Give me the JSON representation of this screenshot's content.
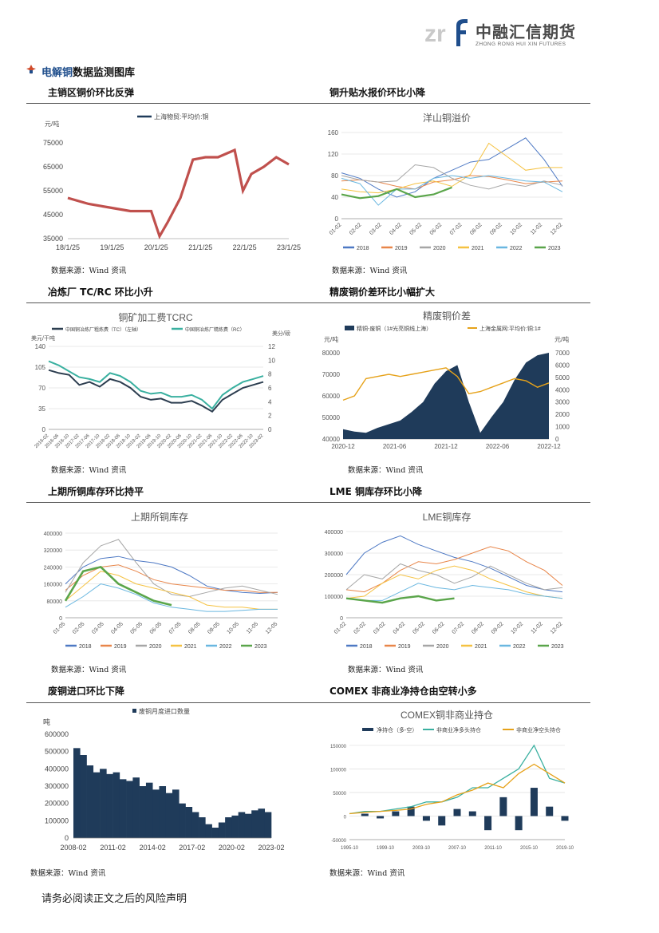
{
  "header": {
    "logo_cn": "中融汇信期货",
    "logo_en": "ZHONG RONG HUI XIN FUTURES",
    "accent_color": "#1f4e8c"
  },
  "section": {
    "title_highlight": "电解铜",
    "title_rest": "数据监测图库"
  },
  "panels": [
    {
      "heading": "主销区铜价环比反弹",
      "source": "数据来源：Wind 资讯"
    },
    {
      "heading": "铜升贴水报价环比小降",
      "source": "数据来源：Wind 资讯"
    },
    {
      "heading": "冶炼厂 TC/RC 环比小升",
      "source": "数据来源：Wind 资讯"
    },
    {
      "heading": "精废铜价差环比小幅扩大",
      "source": "数据来源：Wind 资讯"
    },
    {
      "heading": "上期所铜库存环比持平",
      "source": "数据来源：Wind 资讯"
    },
    {
      "heading": "LME 铜库存环比小降",
      "source": "数据来源：Wind 资讯"
    },
    {
      "heading": "废铜进口环比下降",
      "source": "数据来源：Wind 资讯"
    },
    {
      "heading": "COMEX 非商业净持仓由空转小多",
      "source": "数据来源：Wind 资讯"
    }
  ],
  "footer": "请务必阅读正文之后的风险声明",
  "chart_data": [
    {
      "type": "line",
      "title": "",
      "ylabel": "元/吨",
      "series": [
        {
          "name": "上海物贸:平均价:铜",
          "color": "#c0504d"
        }
      ],
      "x_ticks": [
        "18/1/25",
        "19/1/25",
        "20/1/25",
        "21/1/25",
        "22/1/25",
        "23/1/25"
      ],
      "y_ticks": [
        35000,
        45000,
        55000,
        65000,
        75000
      ],
      "ylim": [
        35000,
        80000
      ],
      "x": [
        2018,
        2018.5,
        2019,
        2019.5,
        2020,
        2020.2,
        2020.4,
        2020.7,
        2021,
        2021.3,
        2021.6,
        2022,
        2022.2,
        2022.4,
        2022.7,
        2023,
        2023.3
      ],
      "values": [
        52000,
        49500,
        48000,
        46500,
        46500,
        36000,
        42000,
        52000,
        68000,
        69000,
        69000,
        72000,
        55000,
        62000,
        65000,
        69000,
        66000
      ]
    },
    {
      "type": "line",
      "title": "洋山铜溢价",
      "x_ticks": [
        "01-02",
        "02-02",
        "03-02",
        "04-02",
        "05-02",
        "06-02",
        "07-02",
        "08-02",
        "09-02",
        "10-02",
        "11-02",
        "12-02"
      ],
      "y_ticks": [
        0,
        40,
        80,
        120,
        160
      ],
      "ylim": [
        0,
        160
      ],
      "series": [
        {
          "name": "2018",
          "color": "#4e79c4",
          "values": [
            85,
            75,
            55,
            40,
            50,
            75,
            90,
            105,
            110,
            130,
            150,
            110,
            60
          ]
        },
        {
          "name": "2019",
          "color": "#e8864a",
          "values": [
            70,
            72,
            68,
            60,
            55,
            68,
            72,
            80,
            78,
            72,
            65,
            68,
            70
          ]
        },
        {
          "name": "2020",
          "color": "#a6a6a6",
          "values": [
            80,
            72,
            68,
            70,
            100,
            95,
            75,
            62,
            55,
            65,
            60,
            70,
            62
          ]
        },
        {
          "name": "2021",
          "color": "#f5c242",
          "values": [
            55,
            50,
            48,
            55,
            65,
            70,
            60,
            82,
            140,
            115,
            90,
            95,
            95
          ]
        },
        {
          "name": "2022",
          "color": "#6ab7e0",
          "values": [
            75,
            65,
            25,
            55,
            55,
            75,
            80,
            75,
            80,
            75,
            70,
            68,
            50
          ]
        },
        {
          "name": "2023",
          "color": "#5aa54a",
          "values": [
            45,
            38,
            42,
            55,
            40,
            45,
            58,
            null,
            null,
            null,
            null,
            null,
            null
          ]
        }
      ]
    },
    {
      "type": "line",
      "title": "铜矿加工费TCRC",
      "ylabel": "美元/干吨",
      "y2label": "美分/磅",
      "x_ticks": [
        "2016-02",
        "2016-06",
        "2016-10",
        "2017-02",
        "2017-06",
        "2017-10",
        "2018-02",
        "2018-06",
        "2018-10",
        "2019-02",
        "2019-06",
        "2019-10",
        "2020-02",
        "2020-06",
        "2020-10",
        "2021-02",
        "2021-06",
        "2021-10",
        "2022-02",
        "2022-06",
        "2022-10",
        "2023-02"
      ],
      "y_ticks": [
        0,
        35,
        70,
        105,
        140
      ],
      "y2_ticks": [
        0,
        2,
        4,
        6,
        8,
        10,
        12
      ],
      "ylim": [
        0,
        140
      ],
      "series": [
        {
          "name": "中国铜冶炼厂粗炼费（TC）（左轴）",
          "color": "#2d3e50",
          "values": [
            100,
            95,
            92,
            75,
            80,
            72,
            85,
            80,
            70,
            55,
            50,
            52,
            45,
            45,
            48,
            40,
            30,
            50,
            60,
            70,
            75,
            80
          ]
        },
        {
          "name": "中国铜冶炼厂精炼费（RC）",
          "color": "#3ab0a0",
          "values": [
            115,
            108,
            98,
            88,
            85,
            80,
            95,
            90,
            80,
            65,
            60,
            62,
            55,
            55,
            58,
            50,
            35,
            58,
            70,
            80,
            85,
            90
          ]
        }
      ]
    },
    {
      "type": "area",
      "title": "精废铜价差",
      "ylabel": "元/吨",
      "x_ticks": [
        "2020-12",
        "2021-06",
        "2021-12",
        "2022-06",
        "2022-12"
      ],
      "y_ticks": [
        40000,
        50000,
        60000,
        70000,
        80000
      ],
      "y2_ticks": [
        0,
        1000,
        2000,
        3000,
        4000,
        5000,
        6000,
        7000
      ],
      "series": [
        {
          "name": "精铜-废铜（1#光亮铜线上海）",
          "color": "#1f3b5a",
          "values": [
            800,
            600,
            500,
            900,
            1200,
            1500,
            2200,
            3000,
            4500,
            5500,
            6000,
            3000,
            500,
            1800,
            3000,
            4800,
            6200,
            6800,
            7000
          ]
        },
        {
          "name": "上海金属网:平均价:铜:1#",
          "color": "#e6a21a",
          "values": [
            58000,
            60000,
            68000,
            69000,
            70000,
            69000,
            70000,
            71000,
            72000,
            73000,
            69000,
            61000,
            62000,
            64000,
            66000,
            68000,
            67000,
            64000,
            66000
          ]
        }
      ]
    },
    {
      "type": "line",
      "title": "上期所铜库存",
      "x_ticks": [
        "01-05",
        "02-05",
        "03-05",
        "04-05",
        "05-05",
        "06-05",
        "07-05",
        "08-05",
        "09-05",
        "10-05",
        "11-05",
        "12-05"
      ],
      "y_ticks": [
        0,
        80000,
        160000,
        240000,
        320000,
        400000
      ],
      "ylim": [
        0,
        400000
      ],
      "series": [
        {
          "name": "2018",
          "color": "#4e79c4",
          "values": [
            160000,
            240000,
            280000,
            290000,
            270000,
            260000,
            240000,
            200000,
            150000,
            130000,
            120000,
            115000,
            120000
          ]
        },
        {
          "name": "2019",
          "color": "#e8864a",
          "values": [
            130000,
            200000,
            240000,
            250000,
            220000,
            180000,
            160000,
            150000,
            140000,
            130000,
            130000,
            120000,
            120000
          ]
        },
        {
          "name": "2020",
          "color": "#a6a6a6",
          "values": [
            120000,
            260000,
            340000,
            370000,
            260000,
            160000,
            110000,
            100000,
            120000,
            140000,
            150000,
            130000,
            110000
          ]
        },
        {
          "name": "2021",
          "color": "#f5c242",
          "values": [
            80000,
            150000,
            220000,
            200000,
            160000,
            140000,
            120000,
            100000,
            60000,
            50000,
            50000,
            40000,
            40000
          ]
        },
        {
          "name": "2022",
          "color": "#6ab7e0",
          "values": [
            50000,
            100000,
            160000,
            140000,
            110000,
            70000,
            50000,
            40000,
            30000,
            30000,
            35000,
            40000,
            40000
          ]
        },
        {
          "name": "2023",
          "color": "#5aa54a",
          "values": [
            80000,
            220000,
            240000,
            160000,
            120000,
            80000,
            60000,
            null,
            null,
            null,
            null,
            null,
            null
          ]
        }
      ]
    },
    {
      "type": "line",
      "title": "LME铜库存",
      "x_ticks": [
        "01-02",
        "02-02",
        "03-02",
        "04-02",
        "05-02",
        "06-02",
        "07-02",
        "08-02",
        "09-02",
        "10-02",
        "11-02",
        "12-02"
      ],
      "y_ticks": [
        0,
        100000,
        200000,
        300000,
        400000
      ],
      "ylim": [
        0,
        400000
      ],
      "series": [
        {
          "name": "2018",
          "color": "#4e79c4",
          "values": [
            200000,
            300000,
            350000,
            380000,
            340000,
            310000,
            280000,
            260000,
            230000,
            190000,
            150000,
            130000,
            120000
          ]
        },
        {
          "name": "2019",
          "color": "#e8864a",
          "values": [
            130000,
            120000,
            160000,
            220000,
            260000,
            250000,
            270000,
            300000,
            330000,
            310000,
            260000,
            220000,
            150000
          ]
        },
        {
          "name": "2020",
          "color": "#a6a6a6",
          "values": [
            130000,
            200000,
            180000,
            250000,
            220000,
            200000,
            160000,
            190000,
            240000,
            200000,
            160000,
            130000,
            140000
          ]
        },
        {
          "name": "2021",
          "color": "#f5c242",
          "values": [
            90000,
            100000,
            160000,
            200000,
            180000,
            220000,
            240000,
            220000,
            180000,
            150000,
            120000,
            100000,
            90000
          ]
        },
        {
          "name": "2022",
          "color": "#6ab7e0",
          "values": [
            90000,
            80000,
            80000,
            120000,
            160000,
            140000,
            130000,
            150000,
            140000,
            130000,
            110000,
            100000,
            90000
          ]
        },
        {
          "name": "2023",
          "color": "#5aa54a",
          "values": [
            90000,
            80000,
            70000,
            90000,
            100000,
            80000,
            90000,
            null,
            null,
            null,
            null,
            null,
            null
          ]
        }
      ]
    },
    {
      "type": "bar",
      "title": "",
      "ylabel": "吨",
      "series": [
        {
          "name": "废铜月度进口数量",
          "color": "#1f3b5a"
        }
      ],
      "x_ticks": [
        "2008-02",
        "2011-02",
        "2014-02",
        "2017-02",
        "2020-02",
        "2023-02"
      ],
      "y_ticks": [
        0,
        100000,
        200000,
        300000,
        400000,
        500000,
        600000
      ],
      "ylim": [
        0,
        600000
      ],
      "values": [
        520000,
        480000,
        420000,
        380000,
        400000,
        370000,
        380000,
        340000,
        330000,
        350000,
        300000,
        320000,
        280000,
        300000,
        260000,
        280000,
        200000,
        180000,
        150000,
        120000,
        80000,
        60000,
        90000,
        120000,
        130000,
        150000,
        140000,
        160000,
        170000,
        150000
      ]
    },
    {
      "type": "line",
      "title": "COMEX铜非商业持仓",
      "x_ticks": [
        "1995-10",
        "1999-10",
        "2003-10",
        "2007-10",
        "2011-10",
        "2015-10",
        "2019-10"
      ],
      "y_ticks": [
        -50000,
        0,
        50000,
        100000,
        150000
      ],
      "ylim": [
        -50000,
        160000
      ],
      "series": [
        {
          "name": "净持仓（多-空）",
          "color": "#1f3b5a",
          "values": [
            0,
            5000,
            -5000,
            10000,
            20000,
            -10000,
            -20000,
            15000,
            10000,
            -30000,
            40000,
            -30000,
            60000,
            20000,
            -10000
          ]
        },
        {
          "name": "非商业净多头持仓",
          "color": "#3ab0a0",
          "values": [
            5000,
            10000,
            10000,
            15000,
            20000,
            30000,
            30000,
            40000,
            60000,
            60000,
            80000,
            100000,
            150000,
            80000,
            70000
          ]
        },
        {
          "name": "非商业净空头持仓",
          "color": "#e6a21a",
          "values": [
            5000,
            8000,
            10000,
            12000,
            15000,
            25000,
            30000,
            45000,
            55000,
            70000,
            60000,
            90000,
            110000,
            90000,
            70000
          ]
        }
      ]
    }
  ]
}
